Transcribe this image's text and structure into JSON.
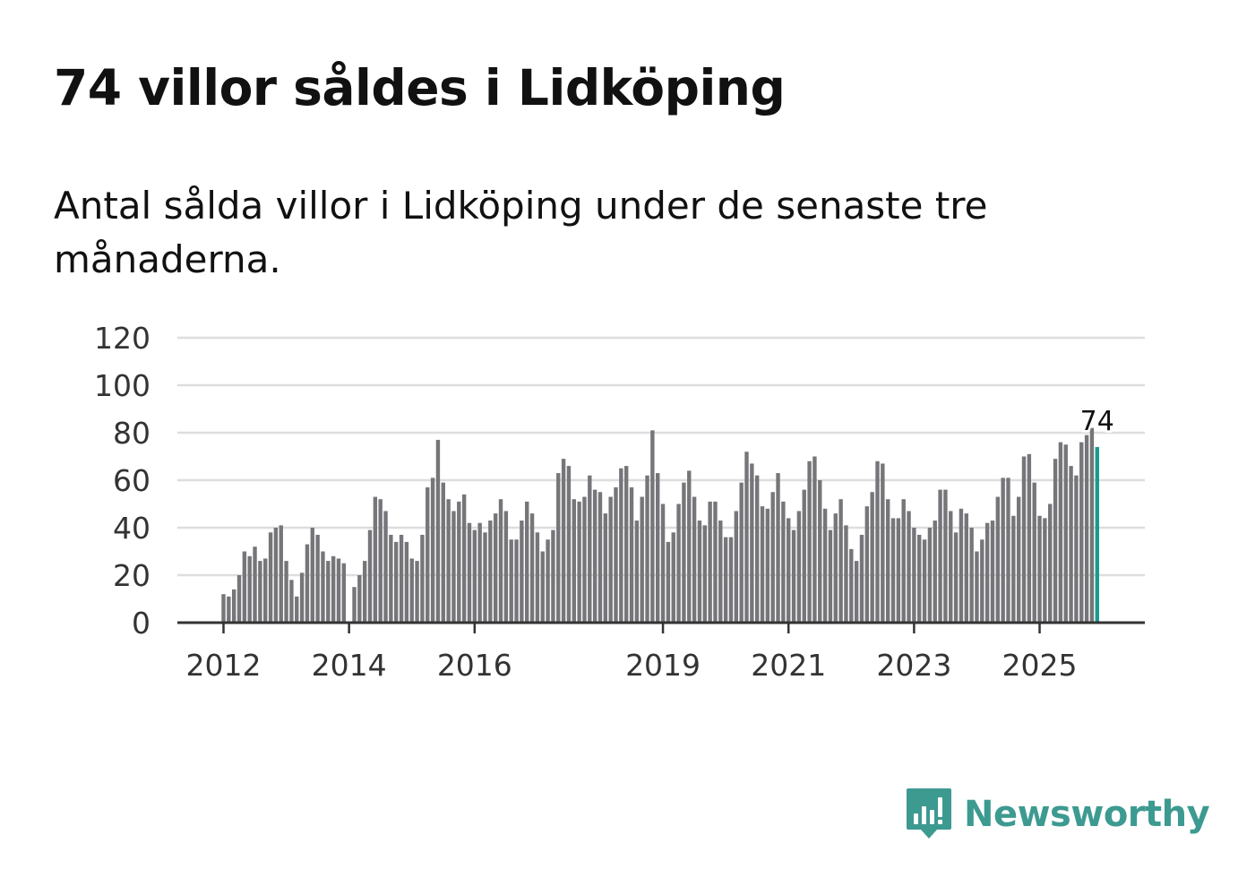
{
  "title": "74 villor såldes i Lidköping",
  "subtitle": "Antal sålda villor i Lidköping under de senaste tre månaderna.",
  "brand": {
    "name": "Newsworthy",
    "icon": "newsworthy-logo-icon",
    "color": "#3d9a91"
  },
  "colors": {
    "bar": "#76767a",
    "highlight": "#1a9a8e",
    "grid": "#dddddd",
    "axis": "#333333"
  },
  "chart_data": {
    "type": "bar",
    "title": "74 villor såldes i Lidköping",
    "xlabel": "",
    "ylabel": "",
    "ylim": [
      0,
      120
    ],
    "yticks": [
      0,
      20,
      40,
      60,
      80,
      100,
      120
    ],
    "xticks": [
      {
        "label": "2012",
        "index": 0
      },
      {
        "label": "2014",
        "index": 24
      },
      {
        "label": "2016",
        "index": 48
      },
      {
        "label": "2019",
        "index": 84
      },
      {
        "label": "2021",
        "index": 108
      },
      {
        "label": "2023",
        "index": 132
      },
      {
        "label": "2025",
        "index": 156
      }
    ],
    "start": "2012-01",
    "frequency": "monthly, rolling three-month total",
    "grid": true,
    "values": [
      12,
      11,
      14,
      20,
      30,
      28,
      32,
      26,
      27,
      38,
      40,
      41,
      26,
      18,
      11,
      21,
      33,
      40,
      37,
      30,
      26,
      28,
      27,
      25,
      0,
      15,
      20,
      26,
      39,
      53,
      52,
      47,
      37,
      34,
      37,
      34,
      27,
      26,
      37,
      57,
      61,
      77,
      59,
      52,
      47,
      51,
      54,
      42,
      39,
      42,
      38,
      43,
      46,
      52,
      47,
      35,
      35,
      43,
      51,
      46,
      38,
      30,
      35,
      39,
      63,
      69,
      66,
      52,
      51,
      53,
      62,
      56,
      55,
      46,
      53,
      57,
      65,
      66,
      57,
      43,
      53,
      62,
      81,
      63,
      50,
      34,
      38,
      50,
      59,
      64,
      53,
      43,
      41,
      51,
      51,
      43,
      36,
      36,
      47,
      59,
      72,
      67,
      62,
      49,
      48,
      55,
      63,
      51,
      44,
      39,
      47,
      56,
      68,
      70,
      60,
      48,
      39,
      46,
      52,
      41,
      31,
      26,
      37,
      49,
      55,
      68,
      67,
      52,
      44,
      44,
      52,
      47,
      40,
      37,
      35,
      40,
      43,
      56,
      56,
      47,
      38,
      48,
      46,
      40,
      30,
      35,
      42,
      43,
      53,
      61,
      61,
      45,
      53,
      70,
      71,
      59,
      45,
      44,
      50,
      69,
      76,
      75,
      66,
      62,
      76,
      79,
      82,
      74
    ],
    "highlight_index": 167,
    "annotations": [
      {
        "index": 167,
        "text": "74"
      }
    ]
  }
}
